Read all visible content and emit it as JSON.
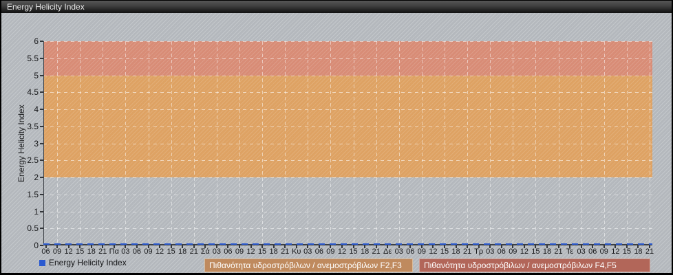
{
  "title_bar": {
    "title": "Energy Helicity Index"
  },
  "legend": {
    "label": "Energy Helicity Index",
    "swatch_color": "#2b5ad0"
  },
  "band_labels": {
    "f23": "Πιθανότητα υδροστρόβιλων / ανεμοστρόβιλων F2,F3",
    "f45": "Πιθανότητα υδροστρόβιλων / ανεμοστρόβιλων F4,F5"
  },
  "colors": {
    "panel_background": "#b4b8bd",
    "titlebar_top": "#575757",
    "titlebar_bottom": "#121212",
    "band_f23": "#dea263",
    "band_f45": "#d88c76",
    "series_blue": "#2b5ad0",
    "axis": "#3c4046",
    "label_box_f23_bg": "#bf8a5e",
    "label_box_f45_bg": "#b26659"
  },
  "chart_data": {
    "type": "line",
    "title": "Energy Helicity Index",
    "ylabel": "Energy Helicity Index",
    "ylim": [
      0,
      6
    ],
    "y_ticks": [
      0,
      0.5,
      1,
      1.5,
      2,
      2.5,
      3,
      3.5,
      4,
      4.5,
      5,
      5.5,
      6
    ],
    "x_tick_labels": [
      "06",
      "09",
      "12",
      "15",
      "18",
      "21",
      "Πα",
      "03",
      "06",
      "09",
      "12",
      "15",
      "18",
      "21",
      "Σά",
      "03",
      "06",
      "09",
      "12",
      "15",
      "18",
      "21",
      "Κυ",
      "03",
      "06",
      "09",
      "12",
      "15",
      "18",
      "21",
      "Δε",
      "03",
      "06",
      "09",
      "12",
      "15",
      "18",
      "21",
      "Τρ",
      "03",
      "06",
      "09",
      "12",
      "15",
      "18",
      "21",
      "Τε",
      "03",
      "06",
      "09",
      "12",
      "15",
      "18",
      "21"
    ],
    "grid": "dashed-white",
    "legend_position": "bottom-left",
    "series": [
      {
        "name": "Energy Helicity Index",
        "color": "#2b5ad0",
        "style": "dashed",
        "constant_value": 0,
        "points": 54
      }
    ],
    "bands": [
      {
        "from": 2,
        "to": 5,
        "color": "#dea263",
        "label": "Πιθανότητα υδροστρόβιλων / ανεμοστρόβιλων F2,F3"
      },
      {
        "from": 5,
        "to": 6,
        "color": "#d88c76",
        "label": "Πιθανότητα υδροστρόβιλων / ανεμοστρόβιλων F4,F5"
      }
    ]
  }
}
